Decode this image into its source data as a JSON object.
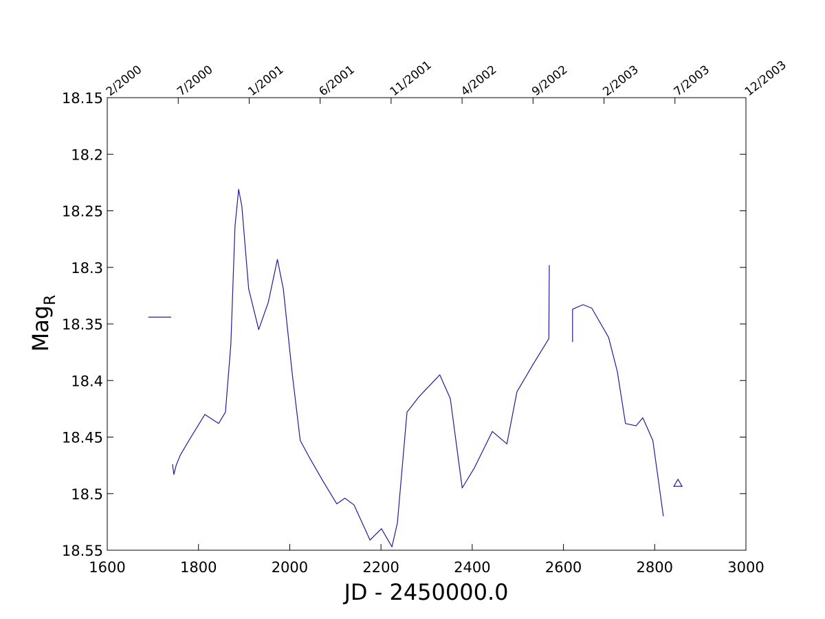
{
  "chart_data": {
    "type": "line",
    "xlabel": "JD - 2450000.0",
    "ylabel": "Mag",
    "ylabel_sub": "R",
    "xlim": [
      1600,
      3000
    ],
    "xticks": [
      1600,
      1800,
      2000,
      2200,
      2400,
      2600,
      2800,
      3000
    ],
    "ylim": [
      18.15,
      18.55
    ],
    "y_reversed": true,
    "yticks": [
      18.15,
      18.2,
      18.25,
      18.3,
      18.35,
      18.4,
      18.45,
      18.5,
      18.55
    ],
    "x2ticks": [
      {
        "value": 1600,
        "label": "2/2000"
      },
      {
        "value": 1755.6,
        "label": "7/2000"
      },
      {
        "value": 1911.1,
        "label": "1/2001"
      },
      {
        "value": 2066.7,
        "label": "6/2001"
      },
      {
        "value": 2222.2,
        "label": "11/2001"
      },
      {
        "value": 2377.8,
        "label": "4/2002"
      },
      {
        "value": 2533.3,
        "label": "9/2002"
      },
      {
        "value": 2688.9,
        "label": "2/2003"
      },
      {
        "value": 2844.4,
        "label": "7/2003"
      },
      {
        "value": 3000,
        "label": "12/2003"
      }
    ],
    "series": [
      {
        "color": "#1c1c9c",
        "x": [
          1690,
          1740,
          null,
          1743,
          1746,
          1751,
          1760,
          1779,
          1814,
          1844,
          1859,
          1871,
          1880,
          1888,
          1895,
          1910,
          1932,
          1953,
          1973,
          1986,
          2005,
          2023,
          2043,
          2073,
          2103,
          2121,
          2141,
          2176,
          2201,
          2224,
          2236,
          2257,
          2284,
          2329,
          2352,
          2378,
          2405,
          2444,
          2476,
          2498,
          2533,
          2568,
          2569,
          null,
          2620,
          2620,
          2643,
          2662,
          2699,
          2718,
          2736,
          2759,
          2774,
          2796,
          2819
        ],
        "values": [
          18.344,
          18.344,
          null,
          18.474,
          18.483,
          18.475,
          18.466,
          18.453,
          18.43,
          18.438,
          18.428,
          18.368,
          18.264,
          18.231,
          18.246,
          18.319,
          18.355,
          18.331,
          18.293,
          18.319,
          18.392,
          18.453,
          18.468,
          18.489,
          18.509,
          18.504,
          18.51,
          18.541,
          18.531,
          18.547,
          18.526,
          18.428,
          18.414,
          18.395,
          18.416,
          18.495,
          18.477,
          18.445,
          18.456,
          18.41,
          18.386,
          18.363,
          18.298,
          null,
          18.366,
          18.337,
          18.333,
          18.336,
          18.362,
          18.392,
          18.438,
          18.44,
          18.433,
          18.453,
          18.52
        ]
      },
      {
        "color": "#1c1c9c",
        "marker": "triangle",
        "x": [
          2851
        ],
        "values": [
          18.491
        ]
      }
    ]
  }
}
